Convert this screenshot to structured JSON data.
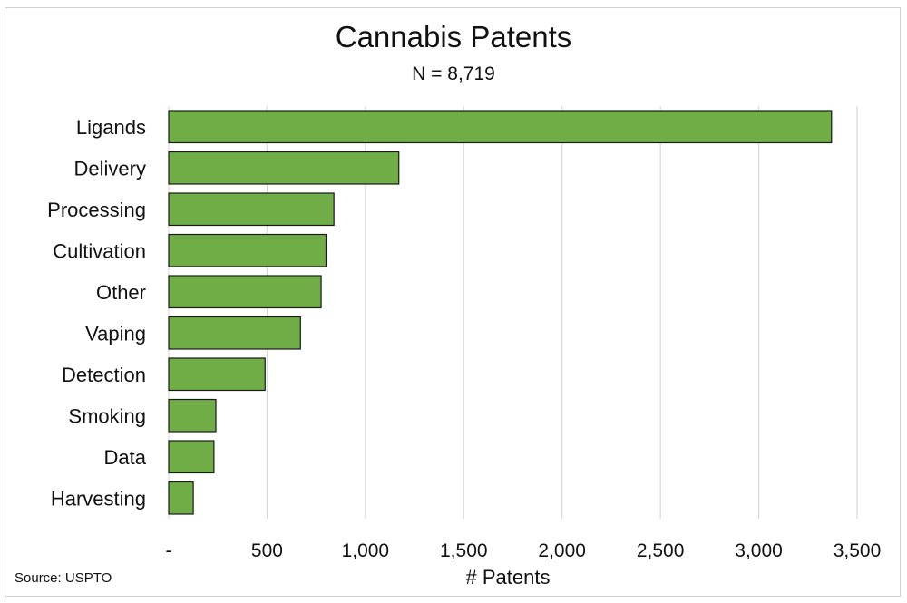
{
  "chart_data": {
    "type": "bar",
    "orientation": "horizontal",
    "title": "Cannabis Patents",
    "subtitle": "N = 8,719",
    "xlabel": "# Patents",
    "ylabel": "",
    "categories": [
      "Ligands",
      "Delivery",
      "Processing",
      "Cultivation",
      "Other",
      "Vaping",
      "Detection",
      "Smoking",
      "Data",
      "Harvesting"
    ],
    "values": [
      3370,
      1170,
      840,
      800,
      775,
      670,
      490,
      240,
      230,
      125
    ],
    "xlim": [
      0,
      3500
    ],
    "xticks": [
      0,
      500,
      1000,
      1500,
      2000,
      2500,
      3000,
      3500
    ],
    "xtick_labels": [
      "-",
      "500",
      "1,000",
      "1,500",
      "2,000",
      "2,500",
      "3,000",
      "3,500"
    ],
    "grid": true,
    "legend": "none",
    "bar_color": "#70ad47",
    "bar_edge_color": "#1a1a1a",
    "source": "Source: USPTO"
  }
}
